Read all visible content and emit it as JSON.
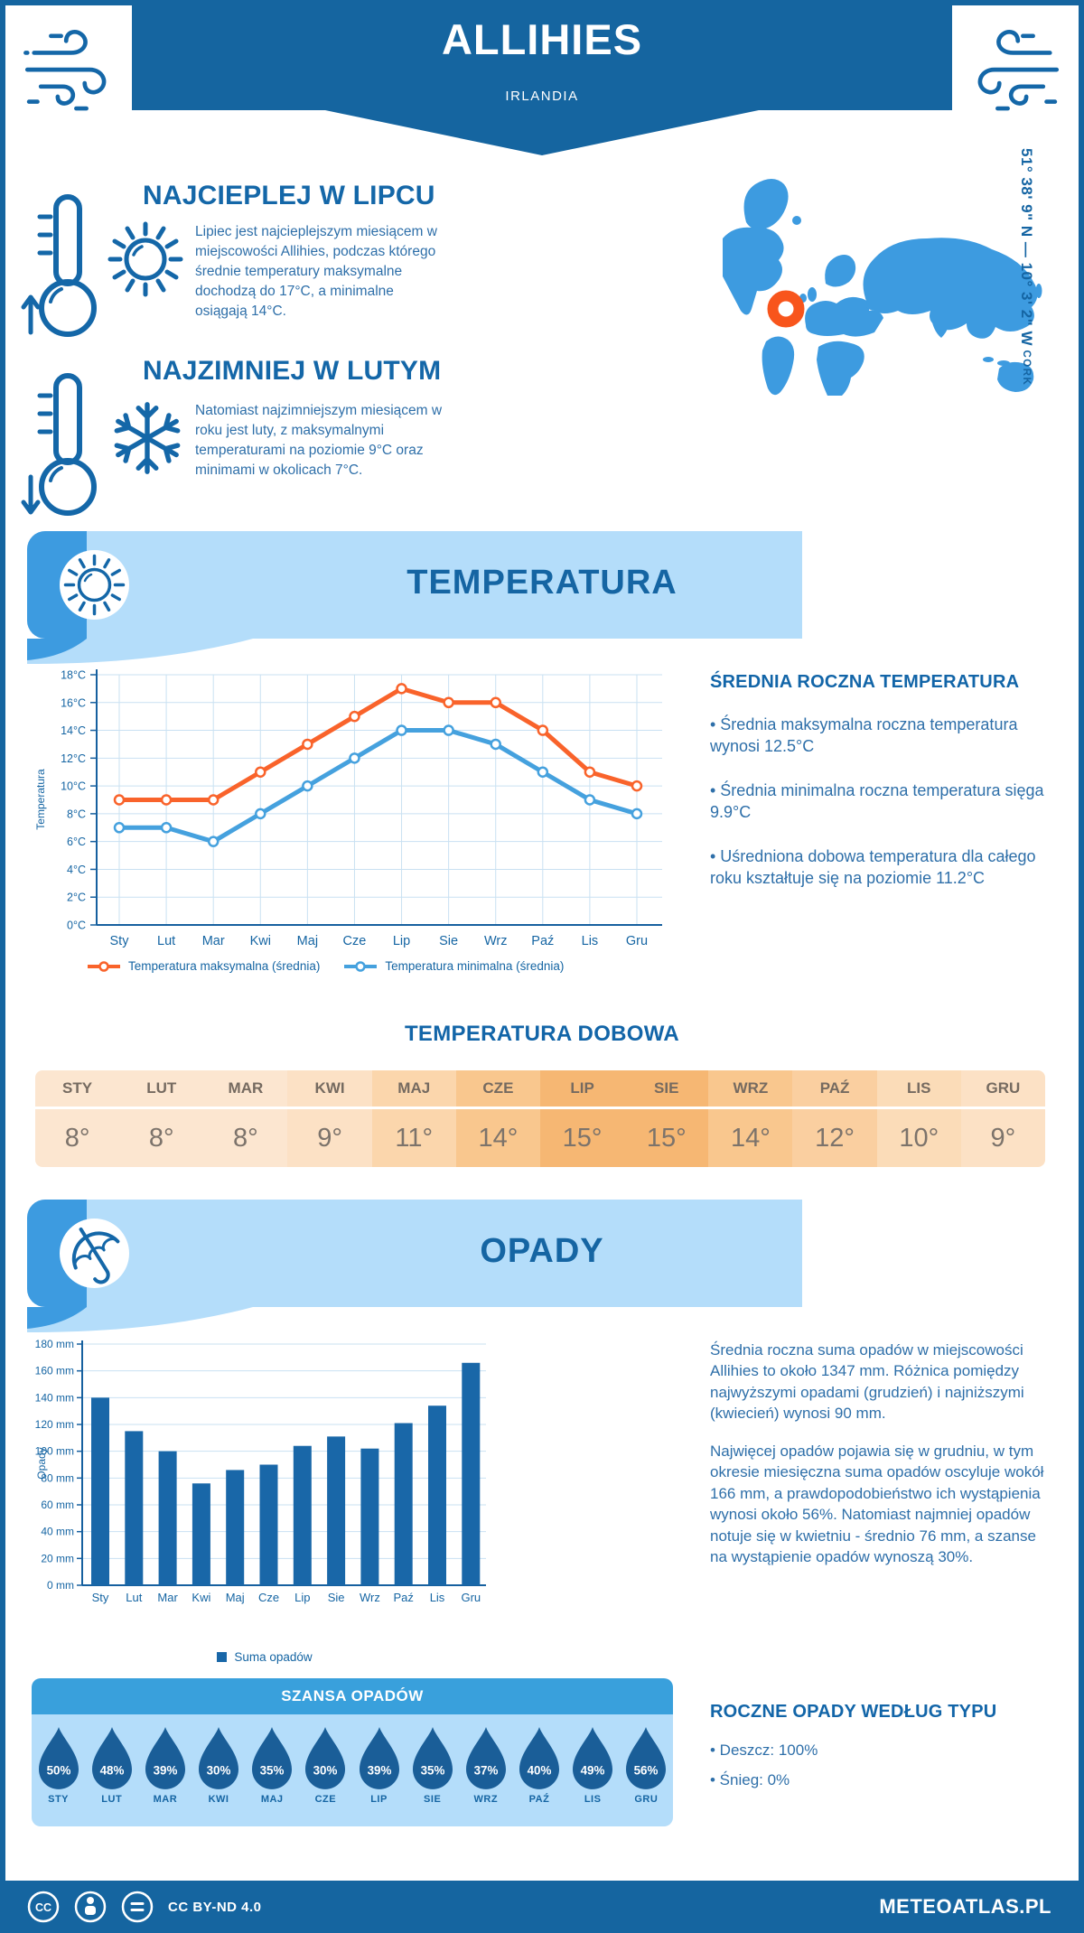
{
  "header": {
    "title": "ALLIHIES",
    "subtitle": "IRLANDIA"
  },
  "highlights": [
    {
      "heading": "NAJCIEPLEJ W LIPCU",
      "text": "Lipiec jest najcieplejszym miesiącem w miejscowości Allihies, podczas którego średnie temperatury maksymalne dochodzą do 17°C, a minimalne osiągają 14°C."
    },
    {
      "heading": "NAJZIMNIEJ W LUTYM",
      "text": "Natomiast najzimniejszym miesiącem w roku jest luty, z maksymalnymi temperaturami na poziomie 9°C oraz minimami w okolicach 7°C."
    }
  ],
  "map": {
    "region": "CORK",
    "coordinates": "51° 38' 9\" N — 10° 3' 2\" W",
    "marker_color": "#F8551C",
    "land_color": "#3D9BE0"
  },
  "temperature_section": {
    "title": "TEMPERATURA",
    "annual": {
      "heading": "ŚREDNIA ROCZNA TEMPERATURA",
      "bullets": [
        "• Średnia maksymalna roczna temperatura wynosi 12.5°C",
        "• Średnia minimalna roczna temperatura sięga 9.9°C",
        "• Uśredniona dobowa temperatura dla całego roku kształtuje się na poziomie 11.2°C"
      ]
    },
    "daily": {
      "title": "TEMPERATURA DOBOWA",
      "months": [
        "STY",
        "LUT",
        "MAR",
        "KWI",
        "MAJ",
        "CZE",
        "LIP",
        "SIE",
        "WRZ",
        "PAŹ",
        "LIS",
        "GRU"
      ],
      "values": [
        8,
        8,
        8,
        9,
        11,
        14,
        15,
        15,
        14,
        12,
        10,
        9
      ],
      "value_suffix": "°",
      "cell_colors": [
        "#FCE6D0",
        "#FCE6D0",
        "#FCE6D0",
        "#FCE1C5",
        "#FBD6AC",
        "#F9C78E",
        "#F6B773",
        "#F6B773",
        "#F9C78E",
        "#FACFA0",
        "#FBDCB8",
        "#FCE1C5"
      ]
    }
  },
  "precipitation_section": {
    "title": "OPADY",
    "paragraphs": [
      "Średnia roczna suma opadów w miejscowości Allihies to około 1347 mm. Różnica pomiędzy najwyższymi opadami (grudzień) i najniższymi (kwiecień) wynosi 90 mm.",
      "Najwięcej opadów pojawia się w grudniu, w tym okresie miesięczna suma opadów oscyluje wokół 166 mm, a prawdopodobieństwo ich wystąpienia wynosi około 56%. Natomiast najmniej opadów notuje się w kwietniu - średnio 76 mm, a szanse na wystąpienie opadów wynoszą 30%."
    ],
    "chance": {
      "title": "SZANSA OPADÓW",
      "months": [
        "STY",
        "LUT",
        "MAR",
        "KWI",
        "MAJ",
        "CZE",
        "LIP",
        "SIE",
        "WRZ",
        "PAŹ",
        "LIS",
        "GRU"
      ],
      "values": [
        50,
        48,
        39,
        30,
        35,
        30,
        39,
        35,
        37,
        40,
        49,
        56
      ],
      "value_suffix": "%",
      "drop_color": "#1A5E98"
    },
    "by_type": {
      "heading": "ROCZNE OPADY WEDŁUG TYPU",
      "items": [
        "• Deszcz: 100%",
        "• Śnieg: 0%"
      ]
    }
  },
  "footer": {
    "license": "CC BY-ND 4.0",
    "brand": "METEOATLAS.PL"
  },
  "colors": {
    "primary_dark_blue": "#1565A0",
    "light_blue_banner": "#B4DDFA",
    "medium_blue": "#3D9BE0",
    "heading_blue": "#1467A8",
    "body_blue": "#2E6FA9",
    "grid_blue": "#C9E1F2"
  },
  "chart_data": [
    {
      "type": "line",
      "categories": [
        "Sty",
        "Lut",
        "Mar",
        "Kwi",
        "Maj",
        "Cze",
        "Lip",
        "Sie",
        "Wrz",
        "Paź",
        "Lis",
        "Gru"
      ],
      "series": [
        {
          "name": "Temperatura maksymalna (średnia)",
          "color": "#F9632B",
          "values": [
            9,
            9,
            9,
            11,
            13,
            15,
            17,
            16,
            16,
            14,
            11,
            10
          ]
        },
        {
          "name": "Temperatura minimalna (średnia)",
          "color": "#45A1DE",
          "values": [
            7,
            7,
            6,
            8,
            10,
            12,
            14,
            14,
            13,
            11,
            9,
            8
          ]
        }
      ],
      "title": "",
      "xlabel": "",
      "ylabel": "Temperatura",
      "ylim": [
        0,
        18
      ],
      "ytick_step": 2,
      "ytick_suffix": "°C",
      "grid": true,
      "legend_position": "bottom"
    },
    {
      "type": "bar",
      "categories": [
        "Sty",
        "Lut",
        "Mar",
        "Kwi",
        "Maj",
        "Cze",
        "Lip",
        "Sie",
        "Wrz",
        "Paź",
        "Lis",
        "Gru"
      ],
      "series": [
        {
          "name": "Suma opadów",
          "color": "#1967A8",
          "values": [
            140,
            115,
            100,
            76,
            86,
            90,
            104,
            111,
            102,
            121,
            134,
            166
          ]
        }
      ],
      "title": "",
      "xlabel": "",
      "ylabel": "Opady",
      "ylim": [
        0,
        180
      ],
      "ytick_step": 20,
      "ytick_suffix": " mm",
      "grid": true,
      "legend_position": "bottom"
    }
  ]
}
